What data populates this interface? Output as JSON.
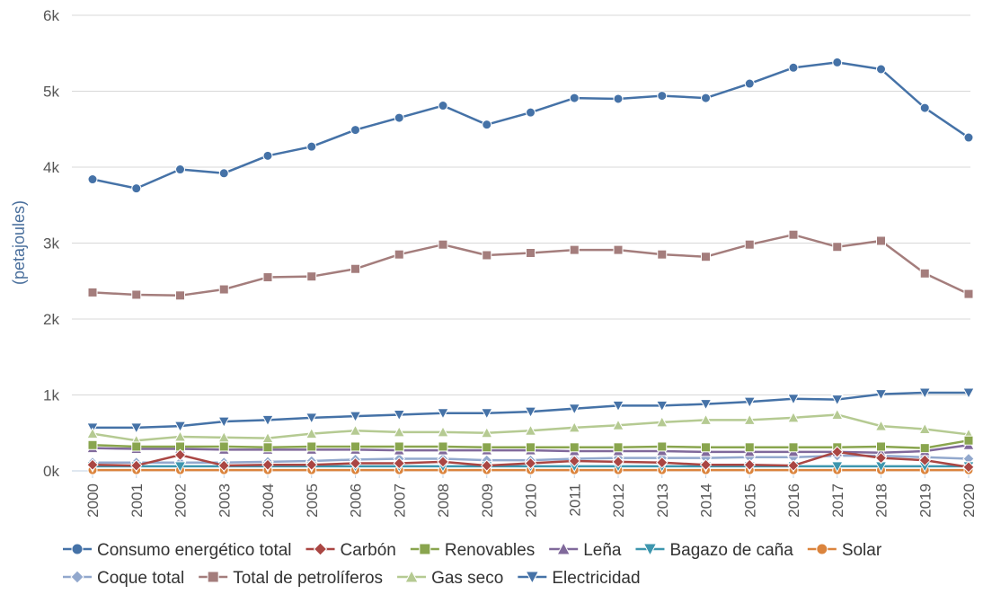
{
  "chart_data": {
    "type": "line",
    "title": "",
    "xlabel": "",
    "ylabel": "(petajoules)",
    "x": [
      "2000",
      "2001",
      "2002",
      "2003",
      "2004",
      "2005",
      "2006",
      "2007",
      "2008",
      "2009",
      "2010",
      "2011",
      "2012",
      "2013",
      "2014",
      "2015",
      "2016",
      "2017",
      "2018",
      "2019",
      "2020"
    ],
    "ylim": [
      0,
      6000
    ],
    "y_ticks": [
      {
        "value": 0,
        "label": "0k"
      },
      {
        "value": 1000,
        "label": "1k"
      },
      {
        "value": 2000,
        "label": "2k"
      },
      {
        "value": 3000,
        "label": "3k"
      },
      {
        "value": 4000,
        "label": "4k"
      },
      {
        "value": 5000,
        "label": "5k"
      },
      {
        "value": 6000,
        "label": "6k"
      }
    ],
    "grid": "horizontal",
    "legend_position": "bottom",
    "series": [
      {
        "name": "Consumo energético total",
        "color": "#4572a7",
        "marker": "circle",
        "values": [
          3840,
          3720,
          3970,
          3920,
          4150,
          4270,
          4490,
          4650,
          4810,
          4560,
          4720,
          4910,
          4900,
          4940,
          4910,
          5100,
          5310,
          5380,
          5290,
          4780,
          4390
        ]
      },
      {
        "name": "Carbón",
        "color": "#aa4643",
        "marker": "diamond",
        "values": [
          80,
          70,
          210,
          70,
          80,
          80,
          100,
          100,
          120,
          70,
          100,
          130,
          120,
          110,
          80,
          80,
          70,
          250,
          170,
          140,
          50
        ]
      },
      {
        "name": "Renovables",
        "color": "#89a54e",
        "marker": "square",
        "values": [
          340,
          320,
          320,
          320,
          310,
          320,
          320,
          320,
          320,
          310,
          310,
          310,
          310,
          320,
          310,
          310,
          310,
          310,
          320,
          300,
          400
        ]
      },
      {
        "name": "Leña",
        "color": "#80699b",
        "marker": "triangle-up",
        "values": [
          300,
          290,
          290,
          280,
          280,
          280,
          280,
          270,
          270,
          270,
          270,
          260,
          260,
          260,
          250,
          250,
          250,
          250,
          240,
          260,
          340
        ]
      },
      {
        "name": "Bagazo de caña",
        "color": "#3d96ae",
        "marker": "triangle-down",
        "values": [
          60,
          60,
          60,
          60,
          60,
          60,
          60,
          60,
          60,
          60,
          60,
          60,
          60,
          60,
          60,
          60,
          60,
          60,
          60,
          60,
          60
        ]
      },
      {
        "name": "Solar",
        "color": "#db843d",
        "marker": "circle",
        "values": [
          10,
          10,
          10,
          10,
          10,
          10,
          10,
          10,
          10,
          10,
          10,
          10,
          10,
          10,
          10,
          10,
          10,
          10,
          10,
          10,
          10
        ]
      },
      {
        "name": "Coque total",
        "color": "#92a8cd",
        "marker": "diamond",
        "values": [
          110,
          110,
          110,
          110,
          120,
          130,
          150,
          160,
          160,
          140,
          140,
          160,
          170,
          170,
          170,
          180,
          180,
          200,
          200,
          180,
          160
        ]
      },
      {
        "name": "Total de petrolíferos",
        "color": "#a47d7c",
        "marker": "square",
        "values": [
          2350,
          2320,
          2310,
          2390,
          2550,
          2560,
          2660,
          2850,
          2980,
          2840,
          2870,
          2910,
          2910,
          2850,
          2820,
          2980,
          3110,
          2950,
          3030,
          2600,
          2330
        ]
      },
      {
        "name": "Gas seco",
        "color": "#b5ca92",
        "marker": "triangle-up",
        "values": [
          490,
          400,
          450,
          440,
          430,
          490,
          530,
          510,
          510,
          500,
          530,
          570,
          600,
          640,
          670,
          670,
          700,
          740,
          590,
          550,
          480
        ]
      },
      {
        "name": "Electricidad",
        "color": "#4572a7",
        "marker": "triangle-down",
        "values": [
          570,
          570,
          590,
          650,
          670,
          700,
          720,
          740,
          760,
          760,
          780,
          820,
          860,
          860,
          880,
          910,
          950,
          940,
          1010,
          1030,
          1030
        ]
      }
    ]
  }
}
